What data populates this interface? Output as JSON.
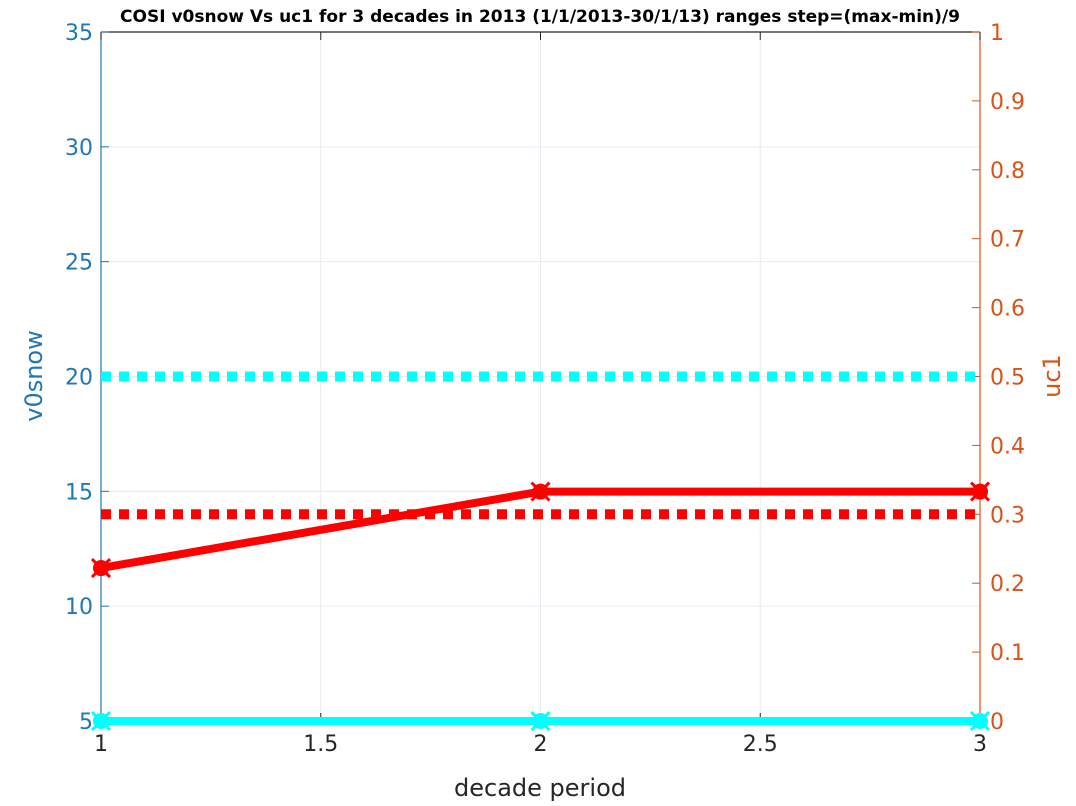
{
  "chart_data": {
    "type": "line",
    "title": "COSI v0snow Vs uc1 for 3 decades in 2013 (1/1/2013-30/1/13)  ranges step=(max-min)/9",
    "xlabel": "decade period",
    "ylabel_left": "v0snow",
    "ylabel_right": "uc1",
    "xlim": [
      1,
      3
    ],
    "ylim_left": [
      5,
      35
    ],
    "ylim_right": [
      0,
      1
    ],
    "x_ticks": [
      "1",
      "1.5",
      "2",
      "2.5",
      "3"
    ],
    "y_left_ticks": [
      "5",
      "10",
      "15",
      "20",
      "25",
      "30",
      "35"
    ],
    "y_right_ticks": [
      "0",
      "0.1",
      "0.2",
      "0.3",
      "0.4",
      "0.5",
      "0.6",
      "0.7",
      "0.8",
      "0.9",
      "1"
    ],
    "grid": true,
    "colors": {
      "left_axis": "#1f77b4",
      "right_axis": "#d95319",
      "cyan": "#00ffff",
      "red": "#ff0000",
      "grid": "#e6ecf2"
    },
    "series": [
      {
        "axis": "left",
        "style": "solid",
        "color": "#00ffff",
        "x": [
          1,
          2,
          3
        ],
        "y": [
          5,
          5,
          5
        ]
      },
      {
        "axis": "left",
        "style": "dotted",
        "color": "#00ffff",
        "x": [
          1,
          3
        ],
        "y": [
          20,
          20
        ]
      },
      {
        "axis": "right",
        "style": "solid",
        "color": "#ff0000",
        "x": [
          1,
          2,
          3
        ],
        "y": [
          0.222,
          0.333,
          0.333
        ]
      },
      {
        "axis": "right",
        "style": "dotted",
        "color": "#ff0000",
        "x": [
          1,
          3
        ],
        "y": [
          0.3,
          0.3
        ]
      }
    ]
  }
}
